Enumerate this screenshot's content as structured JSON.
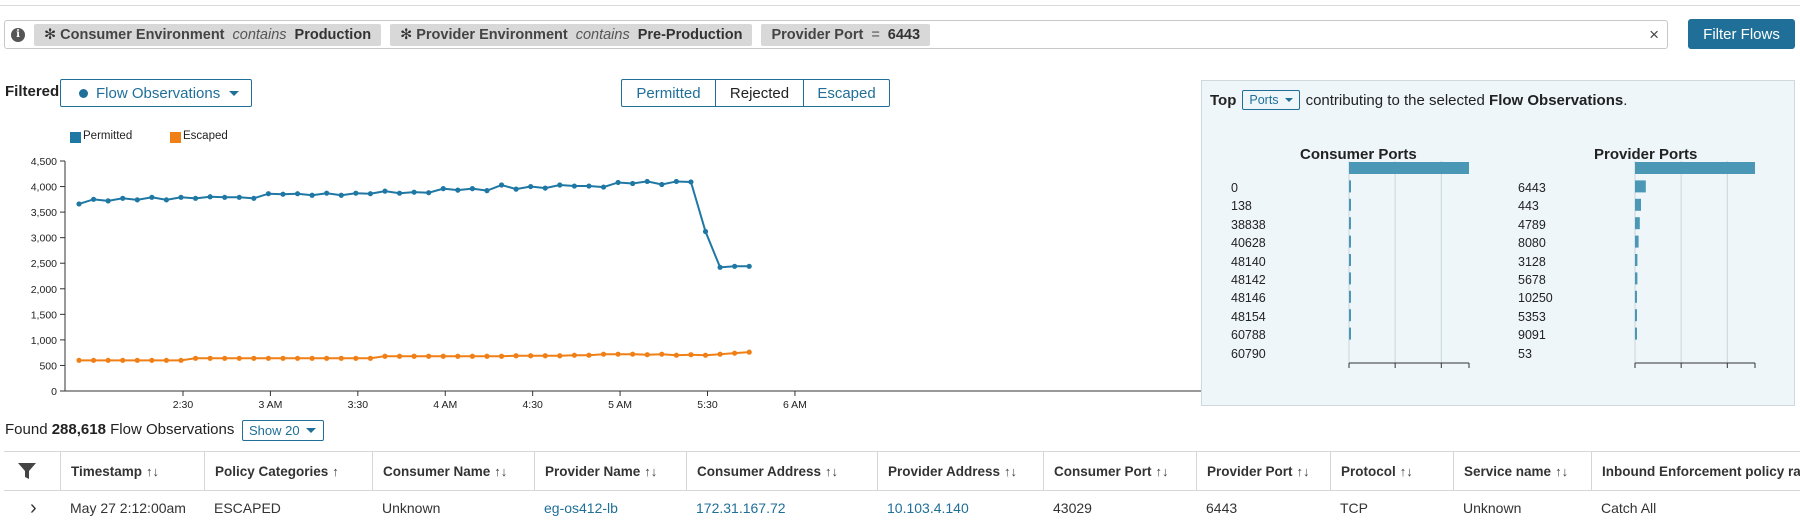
{
  "filters": {
    "chips": [
      {
        "prefix": "✻",
        "key": "Consumer Environment",
        "op": "contains",
        "value": "Production"
      },
      {
        "prefix": "✻",
        "key": "Provider Environment",
        "op": "contains",
        "value": "Pre-Production"
      },
      {
        "prefix": "",
        "key": "Provider Port",
        "op": "=",
        "value": "6443"
      }
    ],
    "clear_icon": "×",
    "filter_button": "Filter Flows"
  },
  "view": {
    "filtered_label": "Filtered",
    "observations_dropdown": "Flow Observations",
    "segments": [
      "Permitted",
      "Rejected",
      "Escaped"
    ]
  },
  "chart_data": {
    "type": "line",
    "title": "",
    "xlabel": "",
    "ylabel": "",
    "ylim": [
      0,
      4500
    ],
    "yticks": [
      "0",
      "500",
      "1,000",
      "1,500",
      "2,000",
      "2,500",
      "3,000",
      "3,500",
      "4,000",
      "4,500"
    ],
    "xticks": [
      {
        "label": "2:30",
        "t": 7
      },
      {
        "label": "3 AM",
        "t": 13
      },
      {
        "label": "3:30",
        "t": 19
      },
      {
        "label": "4 AM",
        "t": 25
      },
      {
        "label": "4:30",
        "t": 31
      },
      {
        "label": "5 AM",
        "t": 37
      },
      {
        "label": "5:30",
        "t": 43
      },
      {
        "label": "6 AM",
        "t": 49
      }
    ],
    "legend": [
      "Permitted",
      "Escaped"
    ],
    "series": [
      {
        "name": "Permitted",
        "color": "#1f77a4",
        "values": [
          3660,
          3750,
          3720,
          3770,
          3740,
          3790,
          3740,
          3790,
          3770,
          3800,
          3790,
          3790,
          3770,
          3860,
          3850,
          3860,
          3830,
          3870,
          3830,
          3870,
          3860,
          3910,
          3870,
          3890,
          3880,
          3960,
          3930,
          3960,
          3920,
          4030,
          3950,
          4000,
          3970,
          4030,
          4010,
          4010,
          3990,
          4080,
          4060,
          4100,
          4040,
          4100,
          4090,
          3120,
          2420,
          2440,
          2440
        ]
      },
      {
        "name": "Escaped",
        "color": "#f07f16",
        "values": [
          600,
          600,
          600,
          600,
          600,
          600,
          600,
          600,
          640,
          640,
          640,
          640,
          640,
          640,
          640,
          640,
          640,
          640,
          640,
          640,
          640,
          680,
          680,
          680,
          680,
          680,
          680,
          680,
          680,
          680,
          690,
          690,
          690,
          690,
          700,
          700,
          720,
          720,
          720,
          710,
          720,
          700,
          710,
          700,
          720,
          740,
          760
        ]
      }
    ]
  },
  "top_panel": {
    "top_word": "Top",
    "dropdown": "Ports",
    "text": "contributing to the selected",
    "bold_tail": "Flow Observations",
    "period": ".",
    "consumer_title": "Consumer Ports",
    "provider_title": "Provider Ports",
    "consumer_ports": [
      "0",
      "138",
      "38838",
      "40628",
      "48140",
      "48142",
      "48146",
      "48154",
      "60788",
      "60790"
    ],
    "consumer_values": [
      100,
      1,
      1,
      1,
      1,
      1,
      1,
      1,
      1,
      1
    ],
    "provider_ports": [
      "6443",
      "443",
      "4789",
      "8080",
      "3128",
      "5678",
      "10250",
      "5353",
      "9091",
      "53"
    ],
    "provider_values": [
      100,
      9,
      5,
      4,
      3,
      2,
      2,
      1,
      1,
      1
    ],
    "bar_color": "#4a98b6"
  },
  "results": {
    "found_prefix": "Found",
    "count": "288,618",
    "suffix": "Flow Observations",
    "show": "Show 20"
  },
  "table": {
    "columns": [
      {
        "label": "Timestamp",
        "sort": "↑↓"
      },
      {
        "label": "Policy Categories",
        "sort": "↑"
      },
      {
        "label": "Consumer Name",
        "sort": "↑↓"
      },
      {
        "label": "Provider Name",
        "sort": "↑↓"
      },
      {
        "label": "Consumer Address",
        "sort": "↑↓"
      },
      {
        "label": "Provider Address",
        "sort": "↑↓"
      },
      {
        "label": "Consumer Port",
        "sort": "↑↓"
      },
      {
        "label": "Provider Port",
        "sort": "↑↓"
      },
      {
        "label": "Protocol",
        "sort": "↑↓"
      },
      {
        "label": "Service name",
        "sort": "↑↓"
      },
      {
        "label": "Inbound Enforcement policy rank",
        "sort": ""
      }
    ],
    "rows": [
      {
        "expand": "›",
        "cells": [
          "May 27 2:12:00am",
          "ESCAPED",
          "Unknown",
          "eg-os412-lb",
          "172.31.167.72",
          "10.103.4.140",
          "43029",
          "6443",
          "TCP",
          "Unknown",
          "Catch All"
        ]
      }
    ]
  }
}
